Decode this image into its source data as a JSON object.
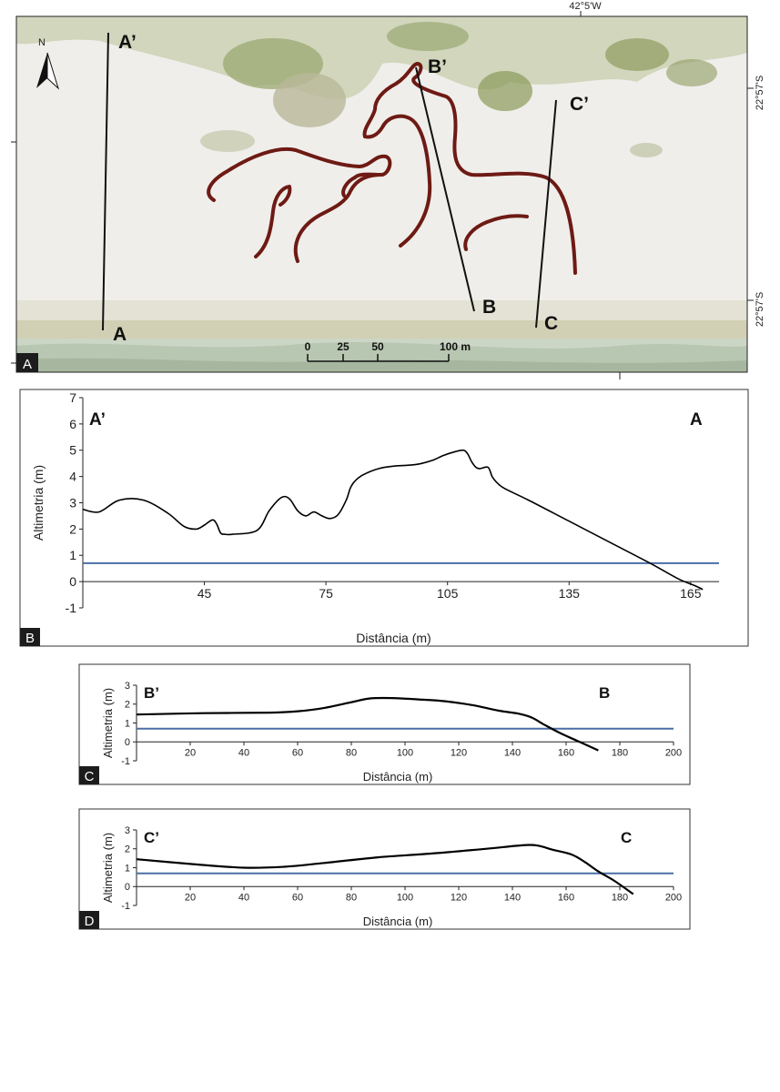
{
  "map": {
    "panel_letter": "A",
    "north_label": "N",
    "coord_top": "42°5'W",
    "coord_right_1": "22°57'S",
    "coord_right_2": "22°57'S",
    "scale_labels": [
      "0",
      "25",
      "50",
      "100 m"
    ],
    "profile_labels": {
      "a": "A",
      "a_prime": "A’",
      "b": "B",
      "b_prime": "B’",
      "c": "C",
      "c_prime": "C’"
    },
    "colors": {
      "dune_crest": "#6e1a14",
      "profile_line": "#111111",
      "sand": "#f2f2ee",
      "vegetation": "#8a9a5b",
      "beach": "#c8c4a6"
    }
  },
  "chart_data": [
    {
      "type": "line",
      "panel_letter": "B",
      "title": "",
      "start_label": "A’",
      "end_label": "A",
      "xlabel": "Distância (m)",
      "ylabel": "Altimetria (m)",
      "xlim": [
        15,
        172
      ],
      "ylim": [
        -1,
        7
      ],
      "xticks": [
        45,
        75,
        105,
        135,
        165
      ],
      "yticks": [
        -1,
        0,
        1,
        2,
        3,
        4,
        5,
        6,
        7
      ],
      "reference_line": {
        "y": 0.7,
        "color": "#4a6fa5"
      },
      "series_color": "#000000",
      "x": [
        15,
        19,
        24,
        30,
        36,
        40,
        43,
        45,
        47,
        48,
        49,
        50,
        52,
        58,
        61,
        64,
        66,
        68,
        70,
        72,
        74,
        76,
        78,
        80,
        81,
        82,
        84,
        88,
        92,
        97,
        101,
        104,
        107,
        109,
        110,
        111,
        112,
        113,
        115,
        116,
        117,
        119,
        125,
        135,
        145,
        155,
        162,
        166,
        168
      ],
      "y": [
        2.75,
        2.65,
        3.1,
        3.1,
        2.6,
        2.1,
        2.0,
        2.15,
        2.35,
        2.2,
        1.85,
        1.8,
        1.8,
        1.95,
        2.7,
        3.2,
        3.15,
        2.7,
        2.5,
        2.65,
        2.5,
        2.4,
        2.55,
        3.1,
        3.55,
        3.8,
        4.05,
        4.3,
        4.4,
        4.45,
        4.6,
        4.8,
        4.95,
        5.0,
        4.85,
        4.55,
        4.35,
        4.3,
        4.35,
        4.0,
        3.8,
        3.55,
        3.1,
        2.3,
        1.5,
        0.7,
        0.1,
        -0.15,
        -0.3
      ]
    },
    {
      "type": "line",
      "panel_letter": "C",
      "title": "",
      "start_label": "B’",
      "end_label": "B",
      "xlabel": "Distância (m)",
      "ylabel": "Altimetria (m)",
      "xlim": [
        0,
        200
      ],
      "ylim": [
        -1,
        3
      ],
      "xticks": [
        20,
        40,
        60,
        80,
        100,
        120,
        140,
        160,
        180,
        200
      ],
      "yticks": [
        -1,
        0,
        1,
        2,
        3
      ],
      "reference_line": {
        "y": 0.7,
        "color": "#4a6fa5"
      },
      "series_color": "#000000",
      "x": [
        0,
        25,
        50,
        60,
        70,
        80,
        87,
        95,
        105,
        115,
        125,
        135,
        142,
        147,
        152,
        158,
        165,
        172
      ],
      "y": [
        1.45,
        1.52,
        1.55,
        1.62,
        1.8,
        2.1,
        2.3,
        2.32,
        2.25,
        2.15,
        1.95,
        1.65,
        1.5,
        1.3,
        0.9,
        0.45,
        0.0,
        -0.45
      ]
    },
    {
      "type": "line",
      "panel_letter": "D",
      "title": "",
      "start_label": "C’",
      "end_label": "C",
      "xlabel": "Distância (m)",
      "ylabel": "Altimetria (m)",
      "xlim": [
        0,
        200
      ],
      "ylim": [
        -1,
        3
      ],
      "xticks": [
        20,
        40,
        60,
        80,
        100,
        120,
        140,
        160,
        180,
        200
      ],
      "yticks": [
        -1,
        0,
        1,
        2,
        3
      ],
      "reference_line": {
        "y": 0.7,
        "color": "#4a6fa5"
      },
      "series_color": "#000000",
      "x": [
        0,
        20,
        40,
        55,
        70,
        90,
        110,
        130,
        145,
        150,
        155,
        162,
        167,
        172,
        178,
        185
      ],
      "y": [
        1.45,
        1.2,
        1.0,
        1.05,
        1.25,
        1.55,
        1.75,
        2.0,
        2.2,
        2.15,
        1.95,
        1.7,
        1.3,
        0.8,
        0.3,
        -0.4
      ]
    }
  ]
}
